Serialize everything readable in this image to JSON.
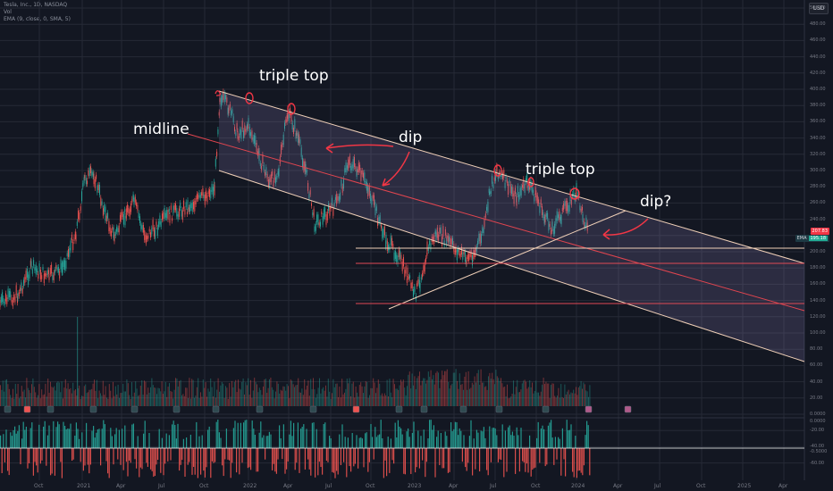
{
  "legend": {
    "symbol": "Tesla, Inc., 1D, NASDAQ",
    "volume": "Vol",
    "ema": "EMA (9, close, 0, SMA, 5)"
  },
  "currency_button": "USD",
  "price_labels": {
    "last_price": "207.83",
    "ema_name": "EMA",
    "ema_value": "195.18"
  },
  "y_axis_ticks": [
    "500.00",
    "480.00",
    "460.00",
    "440.00",
    "420.00",
    "400.00",
    "380.00",
    "360.00",
    "340.00",
    "320.00",
    "300.00",
    "280.00",
    "260.00",
    "240.00",
    "220.00",
    "200.00",
    "180.00",
    "160.00",
    "140.00",
    "120.00",
    "100.00",
    "80.00",
    "60.00",
    "40.00",
    "20.00",
    "0.0000",
    "-20.00",
    "-40.00",
    "-60.00"
  ],
  "indicator_ticks": [
    "0.0000",
    "-0.5000"
  ],
  "x_axis_ticks": [
    "Oct",
    "2021",
    "Apr",
    "Jul",
    "Oct",
    "2022",
    "Apr",
    "Jul",
    "Oct",
    "2023",
    "Apr",
    "Jul",
    "Oct",
    "2024",
    "Apr",
    "Jul",
    "Oct",
    "2025",
    "Apr"
  ],
  "annotations": {
    "triple_top_1": "triple top",
    "midline": "midline",
    "dip": "dip",
    "triple_top_2": "triple top",
    "dip_question": "dip?"
  },
  "colors": {
    "background": "#131722",
    "grid": "#262a36",
    "channel_line": "#f0d0b8",
    "midline": "#e0454f",
    "support": "#e04a55",
    "up_candle": "#26a69a",
    "down_candle": "#ef5350",
    "annotation": "#ffffff",
    "marker": "#f23645"
  }
}
